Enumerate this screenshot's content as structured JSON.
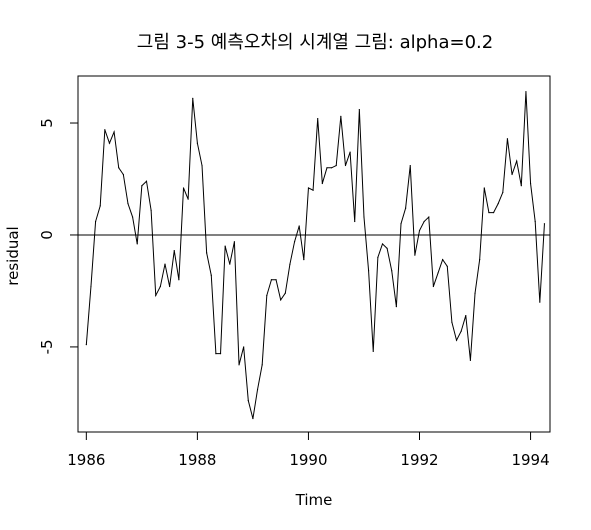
{
  "chart_data": {
    "type": "line",
    "title": "그림 3-5 예측오차의 시계열 그림: alpha=0.2",
    "xlabel": "Time",
    "ylabel": "residual",
    "xlim": [
      1985.85,
      1994.35
    ],
    "ylim": [
      -8.8,
      7.1
    ],
    "x_ticks": [
      1986,
      1988,
      1990,
      1992,
      1994
    ],
    "y_ticks": [
      -5,
      0,
      5
    ],
    "x_tick_labels": [
      "1986",
      "1988",
      "1990",
      "1992",
      "1994"
    ],
    "y_tick_labels": [
      "-5",
      "0",
      "5"
    ],
    "reference_line_y": 0,
    "grid": false,
    "series": [
      {
        "x_start": 1986.0,
        "x_step": 0.0833333,
        "values": [
          -4.9,
          -2.3,
          0.6,
          1.3,
          4.7,
          4.1,
          4.6,
          3.0,
          2.7,
          1.4,
          0.8,
          -0.4,
          2.2,
          2.4,
          1.1,
          -2.7,
          -2.3,
          -1.3,
          -2.3,
          -0.7,
          -2.0,
          2.1,
          1.6,
          6.1,
          4.1,
          3.1,
          -0.8,
          -1.8,
          -5.3,
          -5.3,
          -0.5,
          -1.3,
          -0.3,
          -5.8,
          -5.0,
          -7.4,
          -8.2,
          -6.9,
          -5.8,
          -2.7,
          -2.0,
          -2.0,
          -2.9,
          -2.6,
          -1.3,
          -0.3,
          0.4,
          -1.1,
          2.1,
          2.0,
          5.2,
          2.3,
          3.0,
          3.0,
          3.1,
          5.3,
          3.1,
          3.7,
          0.6,
          5.6,
          0.8,
          -1.6,
          -5.2,
          -1.0,
          -0.4,
          -0.6,
          -1.6,
          -3.2,
          0.5,
          1.2,
          3.1,
          -0.9,
          0.2,
          0.6,
          0.8,
          -2.3,
          -1.7,
          -1.1,
          -1.4,
          -3.9,
          -4.7,
          -4.3,
          -3.6,
          -5.6,
          -2.6,
          -1.1,
          2.1,
          1.0,
          1.0,
          1.4,
          1.9,
          4.3,
          2.7,
          3.3,
          2.2,
          6.4,
          2.3,
          0.6,
          -3.0,
          0.5
        ]
      }
    ]
  }
}
